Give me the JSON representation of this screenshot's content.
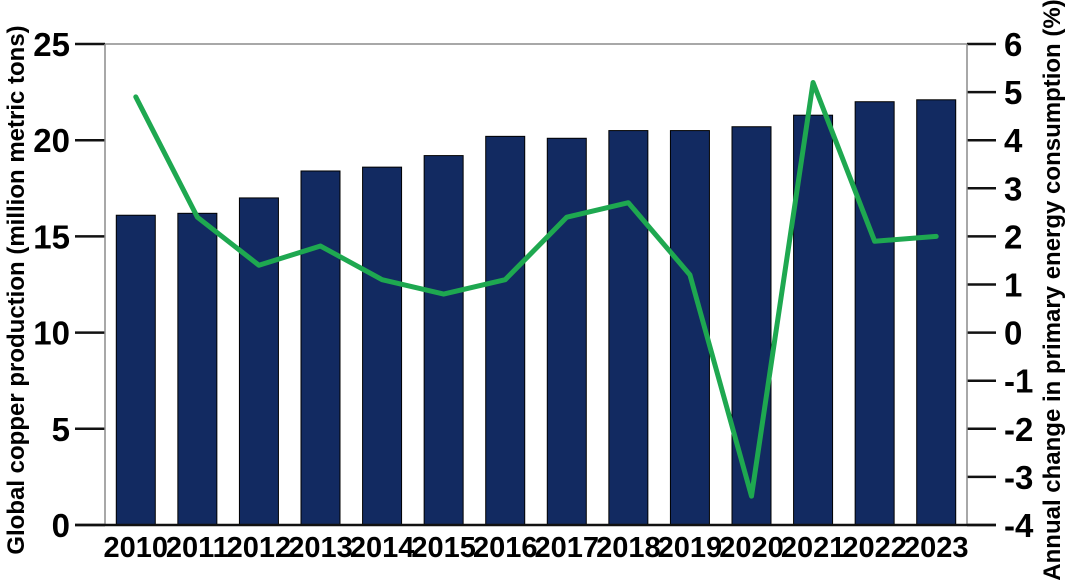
{
  "chart_data": {
    "type": "combo",
    "title": "",
    "legend": "none",
    "grid": false,
    "categories": [
      "2010",
      "2011",
      "2012",
      "2013",
      "2014",
      "2015",
      "2016",
      "2017",
      "2018",
      "2019",
      "2020",
      "2021",
      "2022",
      "2023"
    ],
    "series": [
      {
        "name": "Global copper production",
        "chart_type": "bar",
        "axis": "left",
        "color": "#122A61",
        "values": [
          16.1,
          16.2,
          17.0,
          18.4,
          18.6,
          19.2,
          20.2,
          20.1,
          20.5,
          20.5,
          20.7,
          21.3,
          22.0,
          22.1
        ]
      },
      {
        "name": "Annual change in primary energy consumption",
        "chart_type": "line",
        "axis": "right",
        "color": "#1EA850",
        "values": [
          4.9,
          2.4,
          1.4,
          1.8,
          1.1,
          0.8,
          1.1,
          2.4,
          2.7,
          1.2,
          -3.4,
          5.2,
          1.9,
          2.0
        ]
      }
    ],
    "left_axis": {
      "label": "Global copper production (million metric tons)",
      "min": 0,
      "max": 25,
      "ticks": [
        0,
        5,
        10,
        15,
        20,
        25
      ]
    },
    "right_axis": {
      "label": "Annual change in primary energy consumption (%)",
      "min": -4,
      "max": 6,
      "ticks": [
        -4,
        -3,
        -2,
        -1,
        0,
        1,
        2,
        3,
        4,
        5,
        6
      ]
    }
  },
  "colors": {
    "bar": "#122A61",
    "bar_outline": "#000000",
    "line": "#1EA850",
    "axis_frame": "#8C8C8C",
    "tick": "#111111",
    "text": "#000000",
    "background": "#FFFFFF"
  }
}
